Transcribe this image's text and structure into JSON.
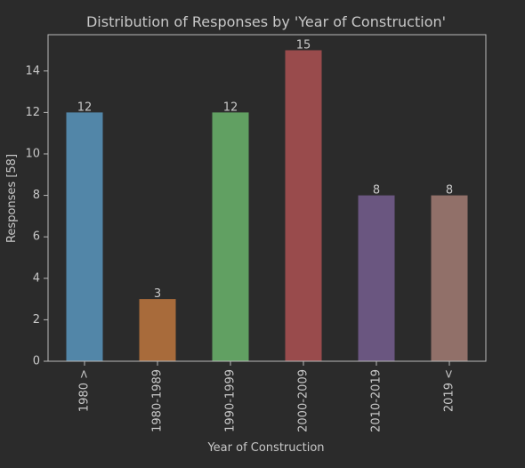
{
  "chart_data": {
    "type": "bar",
    "title": "Distribution of Responses by 'Year of Construction'",
    "xlabel": "Year of Construction",
    "ylabel": "Responses [58]",
    "categories": [
      "1980 >",
      "1980-1989",
      "1990-1999",
      "2000-2009",
      "2010-2019",
      "2019 <"
    ],
    "values": [
      12,
      3,
      12,
      15,
      8,
      8
    ],
    "colors": [
      "#5286a8",
      "#a86b3b",
      "#61a062",
      "#994b4c",
      "#6a5680",
      "#917069"
    ],
    "ylim": [
      0,
      15.75
    ],
    "yticks": [
      0,
      2,
      4,
      6,
      8,
      10,
      12,
      14
    ],
    "grid": false,
    "legend": "none",
    "data_labels": true
  }
}
